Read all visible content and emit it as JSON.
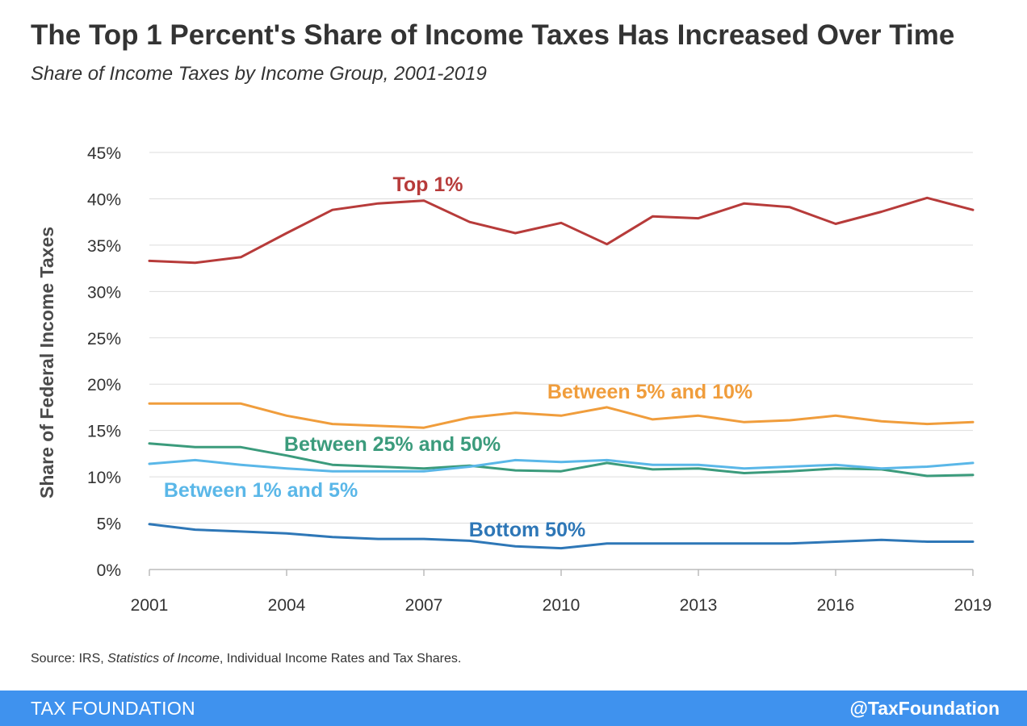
{
  "header": {
    "title": "The Top 1 Percent's Share of Income Taxes Has Increased Over Time",
    "subtitle": "Share of Income Taxes by Income Group, 2001-2019"
  },
  "source": {
    "prefix": "Source: IRS, ",
    "italic": "Statistics of Income",
    "suffix": ", Individual Income Rates and Tax Shares."
  },
  "footer": {
    "brand": "TAX FOUNDATION",
    "handle": "@TaxFoundation"
  },
  "chart_data": {
    "type": "line",
    "title": "The Top 1 Percent's Share of Income Taxes Has Increased Over Time",
    "subtitle": "Share of Income Taxes by Income Group, 2001-2019",
    "xlabel": "",
    "ylabel": "Share of Federal Income Taxes",
    "x": [
      2001,
      2002,
      2003,
      2004,
      2005,
      2006,
      2007,
      2008,
      2009,
      2010,
      2011,
      2012,
      2013,
      2014,
      2015,
      2016,
      2017,
      2018,
      2019
    ],
    "xticks": [
      2001,
      2004,
      2007,
      2010,
      2013,
      2016,
      2019
    ],
    "xlim": [
      2001,
      2019
    ],
    "ylim": [
      0,
      45
    ],
    "yticks": [
      0,
      5,
      10,
      15,
      20,
      25,
      30,
      35,
      40,
      45
    ],
    "ytick_suffix": "%",
    "grid": true,
    "legend": "none",
    "series": [
      {
        "name": "Top 1%",
        "color": "#b73b3a",
        "values": [
          33.3,
          33.1,
          33.7,
          36.3,
          38.8,
          39.5,
          39.8,
          37.5,
          36.3,
          37.4,
          35.1,
          38.1,
          37.9,
          39.5,
          39.1,
          37.3,
          38.6,
          40.1,
          38.8
        ]
      },
      {
        "name": "Between 5% and 10%",
        "color": "#f09d3c",
        "values": [
          17.9,
          17.9,
          17.9,
          16.6,
          15.7,
          15.5,
          15.3,
          16.4,
          16.9,
          16.6,
          17.5,
          16.2,
          16.6,
          15.9,
          16.1,
          16.6,
          16.0,
          15.7,
          15.9
        ]
      },
      {
        "name": "Between 25% and 50%",
        "color": "#3b9b7c",
        "values": [
          13.6,
          13.2,
          13.2,
          12.3,
          11.3,
          11.1,
          10.9,
          11.2,
          10.7,
          10.6,
          11.5,
          10.8,
          10.9,
          10.4,
          10.6,
          10.9,
          10.8,
          10.1,
          10.2
        ]
      },
      {
        "name": "Between 1% and 5%",
        "color": "#5ab7e8",
        "values": [
          11.4,
          11.8,
          11.3,
          10.9,
          10.6,
          10.6,
          10.6,
          11.1,
          11.8,
          11.6,
          11.8,
          11.3,
          11.3,
          10.9,
          11.1,
          11.3,
          10.9,
          11.1,
          11.5
        ]
      },
      {
        "name": "Bottom 50%",
        "color": "#2e77b7",
        "values": [
          4.9,
          4.3,
          4.1,
          3.9,
          3.5,
          3.3,
          3.3,
          3.1,
          2.5,
          2.3,
          2.8,
          2.8,
          2.8,
          2.8,
          2.8,
          3.0,
          3.2,
          3.0,
          3.0
        ]
      }
    ],
    "annotations": [
      {
        "text": "Top 1%",
        "series": "Top 1%"
      },
      {
        "text": "Between 5% and 10%",
        "series": "Between 5% and 10%"
      },
      {
        "text": "Between 25% and 50%",
        "series": "Between 25% and 50%"
      },
      {
        "text": "Between 1% and 5%",
        "series": "Between 1% and 5%"
      },
      {
        "text": "Bottom 50%",
        "series": "Bottom 50%"
      }
    ]
  }
}
